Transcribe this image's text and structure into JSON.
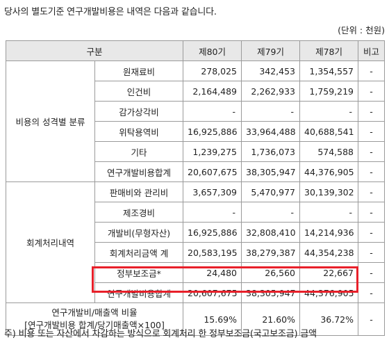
{
  "intro_text": "당사의 별도기준 연구개발비용은 내역은 다음과 같습니다.",
  "unit_text": "(단위 : 천원)",
  "headers": [
    "구분",
    "제80기",
    "제79기",
    "제78기",
    "비고"
  ],
  "section1": {
    "label": "비용의 성격별 분류",
    "rows": [
      {
        "item": "원재료비",
        "p80": "278,025",
        "p79": "342,453",
        "p78": "1,354,557",
        "note": "-"
      },
      {
        "item": "인건비",
        "p80": "2,164,489",
        "p79": "2,262,933",
        "p78": "1,759,219",
        "note": "-"
      },
      {
        "item": "감가상각비",
        "p80": "-",
        "p79": "-",
        "p78": "-",
        "note": "-"
      },
      {
        "item": "위탁용역비",
        "p80": "16,925,886",
        "p79": "33,964,488",
        "p78": "40,688,541",
        "note": "-"
      },
      {
        "item": "기타",
        "p80": "1,239,275",
        "p79": "1,736,073",
        "p78": "574,588",
        "note": "-"
      },
      {
        "item": "연구개발비용합계",
        "p80": "20,607,675",
        "p79": "38,305,947",
        "p78": "44,376,905",
        "note": "-"
      }
    ]
  },
  "section2": {
    "label": "회계처리내역",
    "rows": [
      {
        "item": "판매비와 관리비",
        "p80": "3,657,309",
        "p79": "5,470,977",
        "p78": "30,139,302",
        "note": "-"
      },
      {
        "item": "제조경비",
        "p80": "-",
        "p79": "-",
        "p78": "-",
        "note": "-"
      },
      {
        "item": "개발비(무형자산)",
        "p80": "16,925,886",
        "p79": "32,808,410",
        "p78": "14,214,936",
        "note": "-"
      },
      {
        "item": "회계처리금액 계",
        "p80": "20,583,195",
        "p79": "38,279,387",
        "p78": "44,354,238",
        "note": "-"
      },
      {
        "item": "정부보조금*",
        "p80": "24,480",
        "p79": "26,560",
        "p78": "22,667",
        "note": "-"
      },
      {
        "item": "연구개발비용합계",
        "p80": "20,607,675",
        "p79": "38,305,947",
        "p78": "44,376,905",
        "note": "-"
      }
    ]
  },
  "ratio": {
    "label_line1": "연구개발비/매출액 비율",
    "label_line2": "[연구개발비용 합계/당기매출액×100]",
    "p80": "15.69%",
    "p79": "21.60%",
    "p78": "36.72%",
    "note": "-"
  },
  "footnote": "주) 비용 또는 자산에서 차감하는 방식으로 회계처리 한 정부보조금(국고보조금) 금액",
  "highlight_color": "#e8202a"
}
